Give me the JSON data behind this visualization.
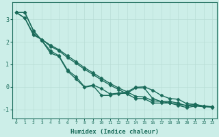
{
  "xlabel": "Humidex (Indice chaleur)",
  "background_color": "#cceee8",
  "line_color": "#1a6b5a",
  "grid_color": "#b8ddd6",
  "xlim": [
    -0.5,
    23.5
  ],
  "ylim": [
    -1.4,
    3.75
  ],
  "yticks": [
    -1,
    0,
    1,
    2,
    3
  ],
  "xticks": [
    0,
    1,
    2,
    3,
    4,
    5,
    6,
    7,
    8,
    9,
    10,
    11,
    12,
    13,
    14,
    15,
    16,
    17,
    18,
    19,
    20,
    21,
    22,
    23
  ],
  "series": [
    [
      3.3,
      3.3,
      2.5,
      2.05,
      1.5,
      1.35,
      0.7,
      0.35,
      -0.02,
      0.05,
      -0.38,
      -0.38,
      -0.3,
      -0.28,
      -0.05,
      -0.05,
      -0.52,
      -0.65,
      -0.72,
      -0.78,
      -0.82,
      -0.78,
      -0.87,
      -0.92
    ],
    [
      3.3,
      3.3,
      2.5,
      2.05,
      1.6,
      1.38,
      0.75,
      0.45,
      0.0,
      0.08,
      -0.08,
      -0.32,
      -0.28,
      -0.22,
      -0.02,
      0.0,
      -0.15,
      -0.38,
      -0.52,
      -0.55,
      -0.75,
      -0.78,
      -0.85,
      -0.9
    ],
    [
      3.3,
      3.05,
      2.3,
      2.1,
      1.8,
      1.6,
      1.3,
      1.05,
      0.78,
      0.55,
      0.3,
      0.08,
      -0.12,
      -0.32,
      -0.52,
      -0.52,
      -0.72,
      -0.72,
      -0.72,
      -0.82,
      -0.92,
      -0.85,
      -0.88,
      -0.88
    ],
    [
      3.3,
      3.05,
      2.35,
      2.1,
      1.85,
      1.65,
      1.38,
      1.12,
      0.85,
      0.62,
      0.38,
      0.15,
      -0.05,
      -0.22,
      -0.42,
      -0.45,
      -0.62,
      -0.65,
      -0.65,
      -0.72,
      -0.85,
      -0.82,
      -0.85,
      -0.88
    ]
  ],
  "marker": "D",
  "markersize": 2.5,
  "linewidth": 1.0
}
